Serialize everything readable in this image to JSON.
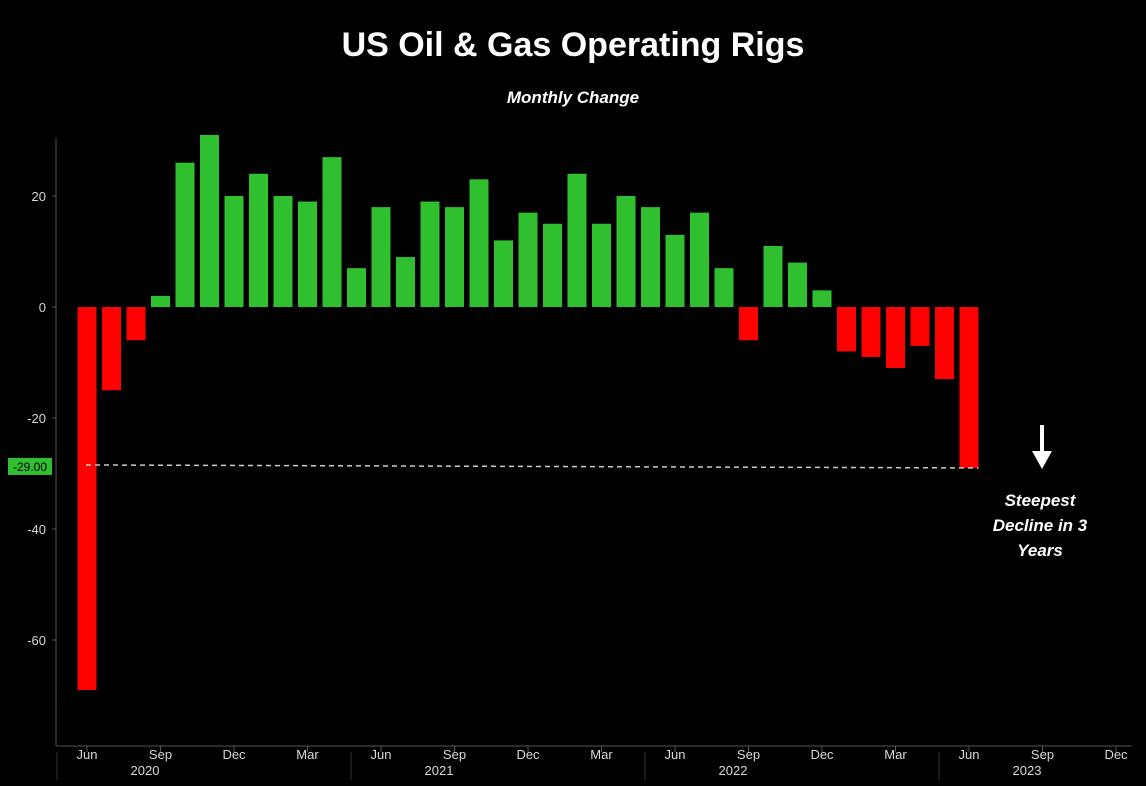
{
  "chart_data": {
    "type": "bar",
    "title": "US Oil & Gas Operating Rigs",
    "subtitle": "Monthly Change",
    "xlabel": "",
    "ylabel": "",
    "ylim": [
      -78,
      32
    ],
    "yticks": [
      20,
      0,
      -20,
      -40,
      -60
    ],
    "reference_line": {
      "value": -29,
      "label": "-29.00",
      "style": "dashed"
    },
    "x_tick_labels": [
      {
        "month": "Jun",
        "year": "2020",
        "index": 0
      },
      {
        "month": "Sep",
        "index": 3
      },
      {
        "month": "Dec",
        "index": 6
      },
      {
        "month": "Mar",
        "index": 9
      },
      {
        "month": "Jun",
        "year": "2021",
        "index": 12
      },
      {
        "month": "Sep",
        "index": 15
      },
      {
        "month": "Dec",
        "index": 18
      },
      {
        "month": "Mar",
        "index": 21
      },
      {
        "month": "Jun",
        "year": "2022",
        "index": 24
      },
      {
        "month": "Sep",
        "index": 27
      },
      {
        "month": "Dec",
        "index": 30
      },
      {
        "month": "Mar",
        "index": 33
      },
      {
        "month": "Jun",
        "year": "2023",
        "index": 36
      },
      {
        "month": "Sep",
        "index": 39
      },
      {
        "month": "Dec",
        "index": 42
      }
    ],
    "values": [
      -69,
      -15,
      -6,
      2,
      26,
      31,
      20,
      24,
      20,
      19,
      27,
      7,
      18,
      9,
      19,
      18,
      23,
      12,
      17,
      15,
      24,
      15,
      20,
      18,
      13,
      17,
      7,
      -6,
      11,
      8,
      3,
      -8,
      -9,
      -11,
      -7,
      -13,
      -29
    ],
    "colors": {
      "positive": "#2fbf2f",
      "negative": "#ff0000",
      "axis": "#555555",
      "ref_label_bg": "#2fbf2f"
    },
    "annotation": {
      "lines": [
        "Steepest",
        "Decline in 3",
        "Years"
      ],
      "icon": "arrow-down-icon"
    }
  }
}
